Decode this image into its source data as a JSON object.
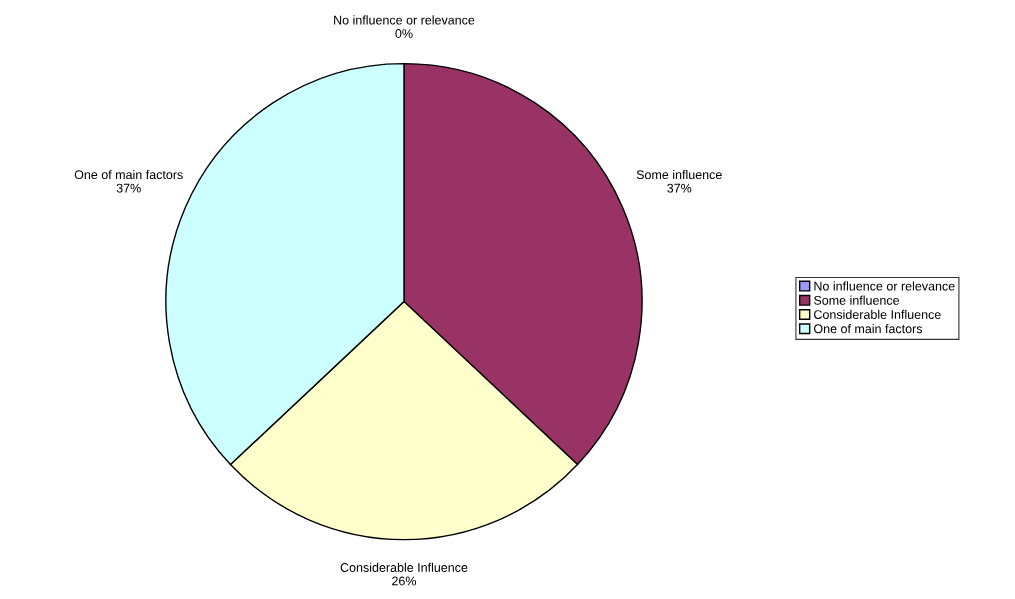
{
  "chart_data": {
    "type": "pie",
    "categories": [
      "No influence or relevance",
      "Some influence",
      "Considerable Influence",
      "One of main factors"
    ],
    "values": [
      0,
      37,
      26,
      37
    ],
    "colors": [
      "#9999ff",
      "#993366",
      "#ffffcc",
      "#ccffff"
    ],
    "value_labels": [
      "0%",
      "37%",
      "26%",
      "37%"
    ],
    "legend": "right"
  }
}
